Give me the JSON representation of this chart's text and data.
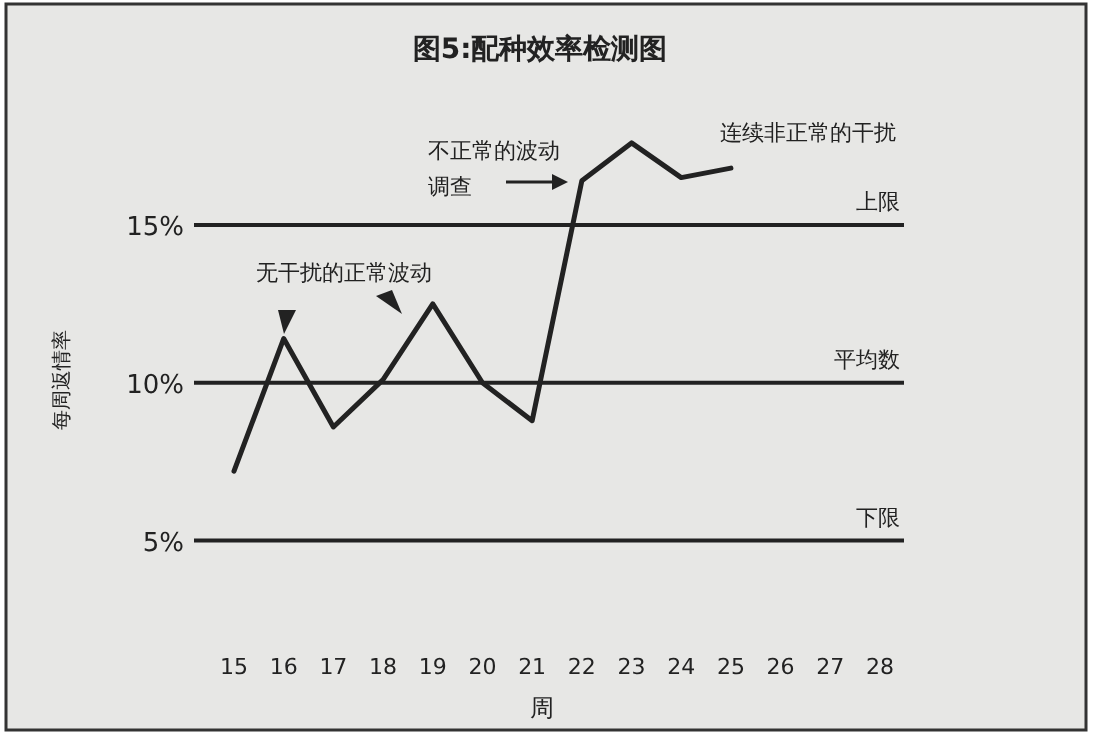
{
  "chart_data": {
    "type": "line",
    "title": "图5:配种效率检测图",
    "xlabel": "周",
    "ylabel": "每周返情率",
    "categories": [
      "15",
      "16",
      "17",
      "18",
      "19",
      "20",
      "21",
      "22",
      "23",
      "24",
      "25",
      "26",
      "27",
      "28"
    ],
    "series": [
      {
        "color": "#222222",
        "values": [
          7.2,
          11.4,
          8.6,
          10.1,
          12.5,
          10,
          8.8,
          16.4,
          17.6,
          16.5,
          16.8,
          null,
          null,
          null
        ]
      }
    ],
    "ylim": [
      -1,
      22
    ],
    "yticks": [
      {
        "value": 5,
        "label": "5%"
      },
      {
        "value": 10,
        "label": "10%"
      },
      {
        "value": 15,
        "label": "15%"
      }
    ],
    "ref_lines": [
      {
        "axis": "y",
        "value": 15,
        "label": "上限",
        "color": "#222222"
      },
      {
        "axis": "y",
        "value": 10,
        "label": "平均数",
        "color": "#222222"
      },
      {
        "axis": "y",
        "value": 5,
        "label": "下限",
        "color": "#222222"
      }
    ],
    "annotations": [
      "无干扰的正常波动",
      "不正常的波动",
      "调查",
      "连续非正常的干扰"
    ]
  }
}
